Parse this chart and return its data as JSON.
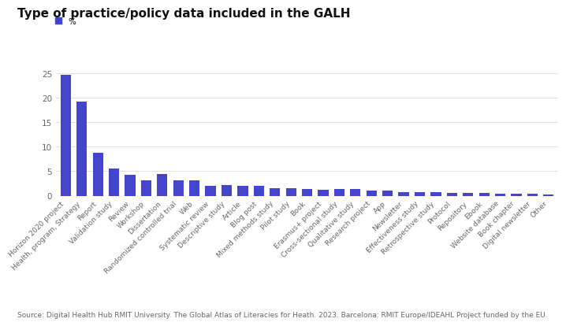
{
  "title": "Type of practice/policy data included in the GALH",
  "legend_label": "%",
  "bar_color": "#4444cc",
  "background_color": "#ffffff",
  "categories": [
    "Horizon 2020 project",
    "Health, program, Strategy",
    "Report",
    "Validation study",
    "Review",
    "Workshop",
    "Dissertation",
    "Randomized controlled trial",
    "Web",
    "Systematic review",
    "Descriptive study",
    "Article",
    "Blog post",
    "Mixed methods study",
    "Pilot study",
    "Book",
    "Erasmus+ project",
    "Cross-sectional study",
    "Qualitative study",
    "Research project",
    "App",
    "Newsletter",
    "Effectiveness study",
    "Retrospective study",
    "Protocol",
    "Repository",
    "Ebook",
    "Website database",
    "Book chapter",
    "Digital newsletter",
    "Other"
  ],
  "values": [
    24.7,
    19.3,
    8.7,
    5.6,
    4.2,
    3.1,
    4.5,
    3.2,
    3.2,
    2.1,
    2.2,
    2.1,
    2.1,
    1.6,
    1.5,
    1.4,
    1.3,
    1.4,
    1.4,
    1.1,
    1.0,
    0.8,
    0.8,
    0.8,
    0.6,
    0.6,
    0.6,
    0.4,
    0.4,
    0.4,
    0.2
  ],
  "ylim": [
    0,
    27
  ],
  "yticks": [
    0,
    5,
    10,
    15,
    20,
    25
  ],
  "source_text": "Source: Digital Health Hub RMIT University. The Global Atlas of Literacies for Heath. 2023. Barcelona: RMIT Europe/IDEAHL Project funded by the EU.",
  "title_fontsize": 11,
  "tick_fontsize": 6.5,
  "ylabel_fontsize": 7.5,
  "source_fontsize": 6.5,
  "legend_fontsize": 7.5
}
